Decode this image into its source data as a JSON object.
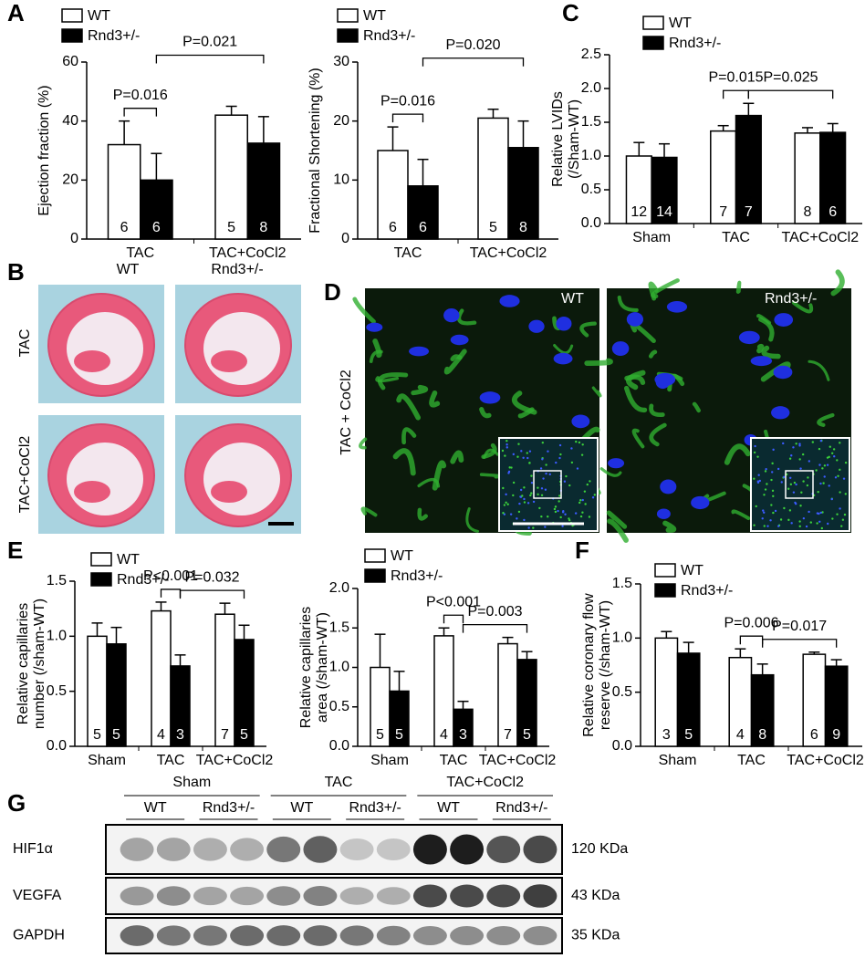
{
  "panel_labels": [
    "A",
    "B",
    "C",
    "D",
    "E",
    "F",
    "G"
  ],
  "chart_data": [
    {
      "type": "bar",
      "ylabel": [
        "Ejection fraction (%)"
      ],
      "categories": [
        "TAC",
        "TAC+CoCl2"
      ],
      "series": [
        {
          "name": "WT",
          "color": "#ffffff",
          "values": [
            32,
            42
          ],
          "errors": [
            8,
            3
          ],
          "n": [
            6,
            5
          ]
        },
        {
          "name": "Rnd3+/-",
          "color": "#000000",
          "values": [
            20,
            32.5
          ],
          "errors": [
            9,
            9
          ],
          "n": [
            6,
            8
          ]
        }
      ],
      "ylim": [
        0,
        60
      ],
      "yticks": [
        0,
        20,
        40,
        60
      ],
      "annotations": [
        {
          "label": "P=0.016"
        },
        {
          "label": "P=0.021"
        }
      ]
    },
    {
      "type": "bar",
      "ylabel": [
        "Fractional Shortening (%)"
      ],
      "categories": [
        "TAC",
        "TAC+CoCl2"
      ],
      "series": [
        {
          "name": "WT",
          "color": "#ffffff",
          "values": [
            15,
            20.5
          ],
          "errors": [
            4,
            1.5
          ],
          "n": [
            6,
            5
          ]
        },
        {
          "name": "Rnd3+/-",
          "color": "#000000",
          "values": [
            9,
            15.5
          ],
          "errors": [
            4.5,
            4.5
          ],
          "n": [
            6,
            8
          ]
        }
      ],
      "ylim": [
        0,
        30
      ],
      "yticks": [
        0,
        10,
        20,
        30
      ],
      "annotations": [
        {
          "label": "P=0.016"
        },
        {
          "label": "P=0.020"
        }
      ]
    },
    {
      "type": "bar",
      "ylabel": [
        "Relative LVIDs",
        "(/Sham-WT)"
      ],
      "categories": [
        "Sham",
        "TAC",
        "TAC+CoCl2"
      ],
      "series": [
        {
          "name": "WT",
          "color": "#ffffff",
          "values": [
            1.0,
            1.37,
            1.34
          ],
          "errors": [
            0.2,
            0.08,
            0.08
          ],
          "n": [
            12,
            7,
            8
          ]
        },
        {
          "name": "Rnd3+/-",
          "color": "#000000",
          "values": [
            0.98,
            1.6,
            1.35
          ],
          "errors": [
            0.2,
            0.18,
            0.13
          ],
          "n": [
            14,
            7,
            6
          ]
        }
      ],
      "ylim": [
        0,
        2.5
      ],
      "yticks": [
        {
          "value": 0,
          "label": "0.0"
        },
        0.5,
        {
          "value": 1,
          "label": "1.0"
        },
        1.5,
        {
          "value": 2,
          "label": "2.0"
        },
        2.5
      ],
      "annotations": [
        {
          "label": "P=0.015"
        },
        {
          "label": "P=0.025"
        }
      ]
    },
    {
      "type": "bar",
      "ylabel": [
        "Relative capillaries",
        "number (/sham-WT)"
      ],
      "categories": [
        "Sham",
        "TAC",
        "TAC+CoCl2"
      ],
      "series": [
        {
          "name": "WT",
          "color": "#ffffff",
          "values": [
            1.0,
            1.23,
            1.2
          ],
          "errors": [
            0.12,
            0.08,
            0.1
          ],
          "n": [
            5,
            4,
            7
          ]
        },
        {
          "name": "Rnd3+/-",
          "color": "#000000",
          "values": [
            0.93,
            0.73,
            0.97
          ],
          "errors": [
            0.15,
            0.1,
            0.13
          ],
          "n": [
            5,
            3,
            5
          ]
        }
      ],
      "ylim": [
        0,
        1.5
      ],
      "yticks": [
        {
          "value": 0,
          "label": "0.0"
        },
        0.5,
        {
          "value": 1,
          "label": "1.0"
        },
        1.5
      ],
      "annotations": [
        {
          "label": "P<0.001"
        },
        {
          "label": "P=0.032"
        }
      ]
    },
    {
      "type": "bar",
      "ylabel": [
        "Relative capillaries",
        "area (/sham-WT)"
      ],
      "categories": [
        "Sham",
        "TAC",
        "TAC+CoCl2"
      ],
      "series": [
        {
          "name": "WT",
          "color": "#ffffff",
          "values": [
            1.0,
            1.4,
            1.3
          ],
          "errors": [
            0.42,
            0.1,
            0.08
          ],
          "n": [
            5,
            4,
            7
          ]
        },
        {
          "name": "Rnd3+/-",
          "color": "#000000",
          "values": [
            0.7,
            0.47,
            1.1
          ],
          "errors": [
            0.25,
            0.1,
            0.1
          ],
          "n": [
            5,
            3,
            5
          ]
        }
      ],
      "ylim": [
        0,
        2
      ],
      "yticks": [
        {
          "value": 0,
          "label": "0.0"
        },
        0.5,
        {
          "value": 1,
          "label": "1.0"
        },
        1.5,
        {
          "value": 2,
          "label": "2.0"
        }
      ],
      "annotations": [
        {
          "label": "P<0.001"
        },
        {
          "label": "P=0.003"
        }
      ]
    },
    {
      "type": "bar",
      "ylabel": [
        "Relative coronary flow",
        "reserve (/sham-WT)"
      ],
      "categories": [
        "Sham",
        "TAC",
        "TAC+CoCl2"
      ],
      "series": [
        {
          "name": "WT",
          "color": "#ffffff",
          "values": [
            1.0,
            0.82,
            0.85
          ],
          "errors": [
            0.06,
            0.08,
            0.02
          ],
          "n": [
            3,
            4,
            6
          ]
        },
        {
          "name": "Rnd3+/-",
          "color": "#000000",
          "values": [
            0.86,
            0.66,
            0.74
          ],
          "errors": [
            0.1,
            0.1,
            0.06
          ],
          "n": [
            5,
            8,
            9
          ]
        }
      ],
      "ylim": [
        0,
        1.5
      ],
      "yticks": [
        {
          "value": 0,
          "label": "0.0"
        },
        0.5,
        {
          "value": 1,
          "label": "1.0"
        },
        1.5
      ],
      "annotations": [
        {
          "label": "P=0.006"
        },
        {
          "label": "P=0.017"
        }
      ]
    }
  ],
  "histology": {
    "columns": [
      "WT",
      "Rnd3+/-"
    ],
    "rows": [
      "TAC",
      "TAC+CoCl2"
    ]
  },
  "immunofluorescence": {
    "row_label": "TAC + CoCl2",
    "labels": [
      "WT",
      "Rnd3+/-"
    ]
  },
  "western_blot": {
    "groups": [
      "Sham",
      "TAC",
      "TAC+CoCl2"
    ],
    "lanes": [
      "WT",
      "Rnd3+/-",
      "WT",
      "Rnd3+/-",
      "WT",
      "Rnd3+/-"
    ],
    "rows": [
      {
        "protein": "HIF1α",
        "size": "120 KDa"
      },
      {
        "protein": "VEGFA",
        "size": "43 KDa"
      },
      {
        "protein": "GAPDH",
        "size": "35 KDa"
      }
    ]
  }
}
